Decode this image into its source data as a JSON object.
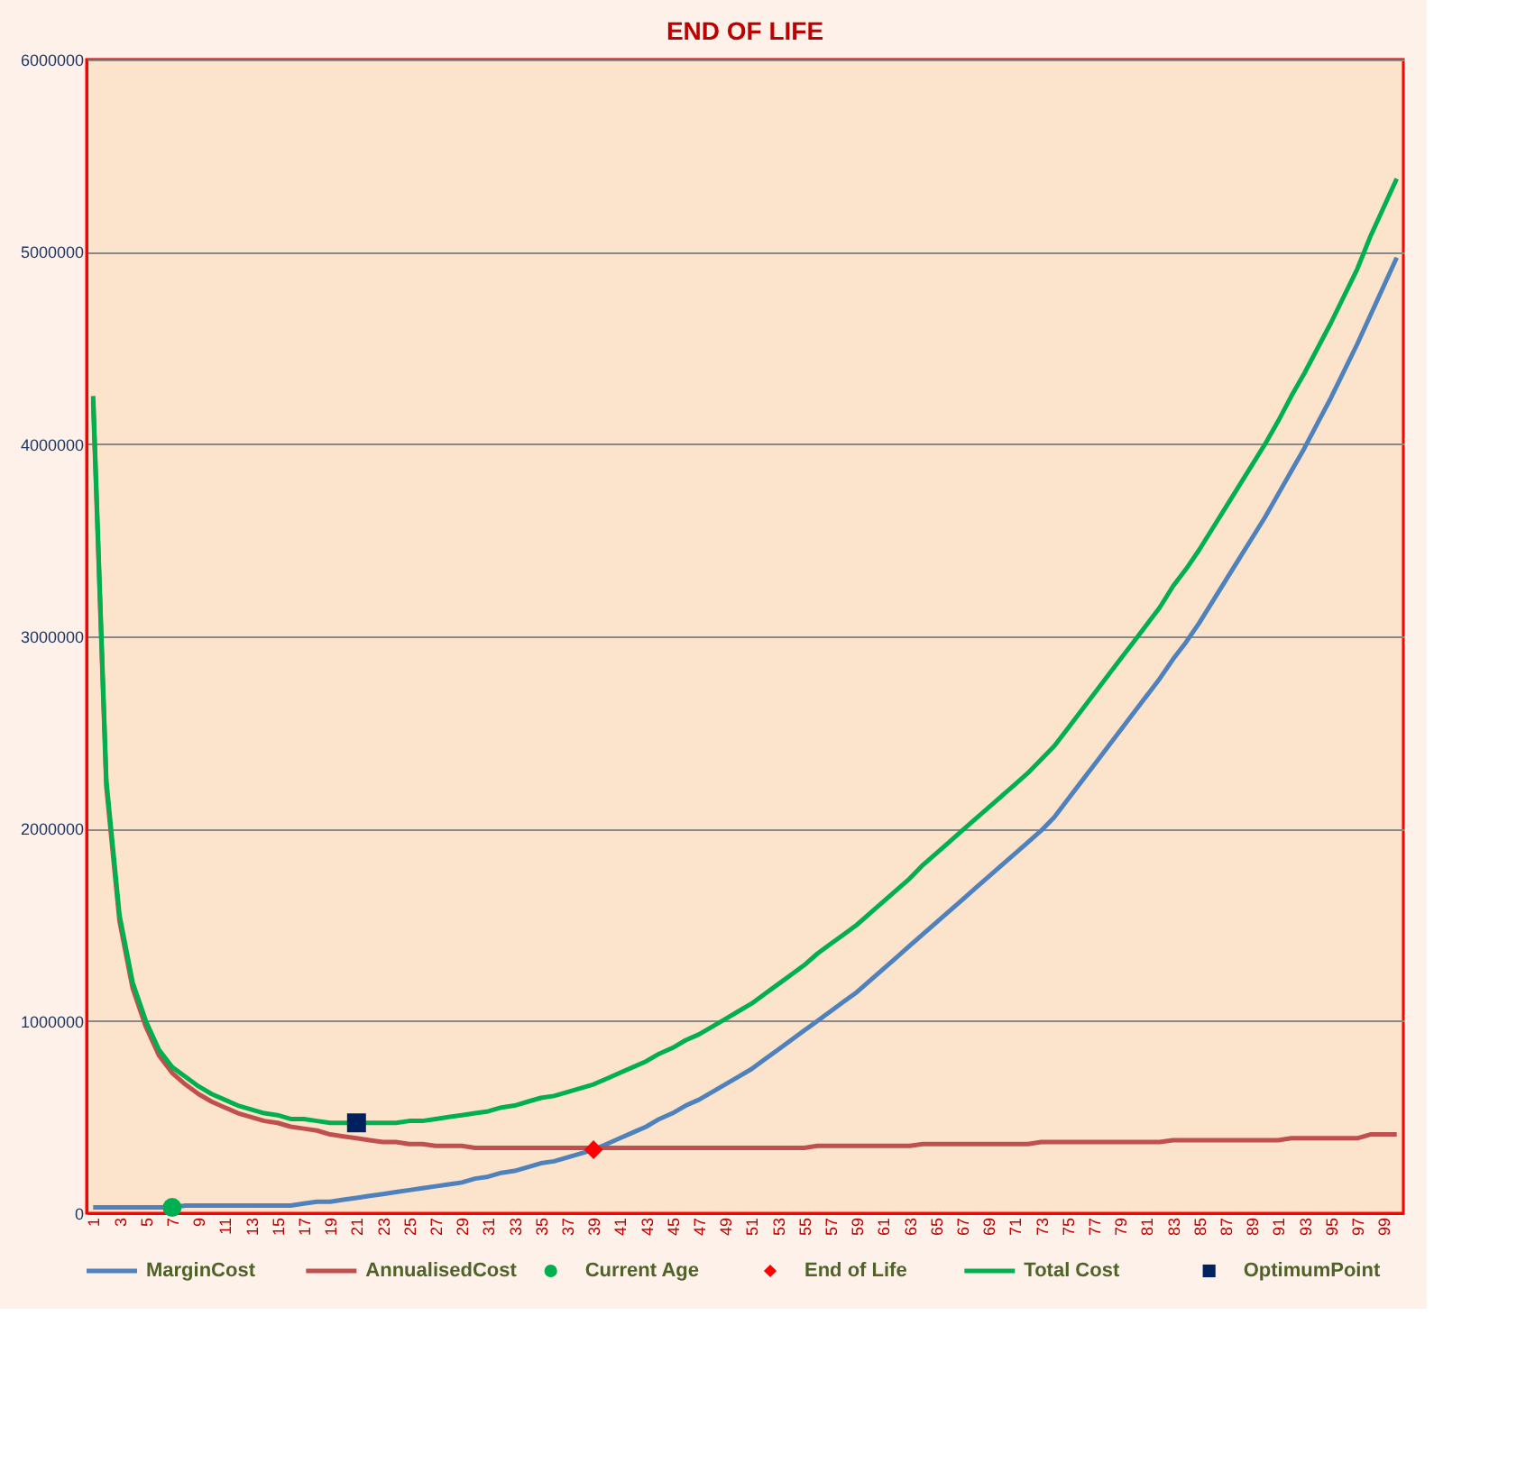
{
  "chart_data": {
    "type": "line",
    "title": "END OF LIFE",
    "categories": [
      "1",
      null,
      "3",
      null,
      "5",
      null,
      "7",
      null,
      "9",
      null,
      "11",
      null,
      "13",
      null,
      "15",
      null,
      "17",
      null,
      "19",
      null,
      "21",
      null,
      "23",
      null,
      "25",
      null,
      "27",
      null,
      "29",
      null,
      "31",
      null,
      "33",
      null,
      "35",
      null,
      "37",
      null,
      "39",
      null,
      "41",
      null,
      "43",
      null,
      "45",
      null,
      "47",
      null,
      "49",
      null,
      "51",
      null,
      "53",
      null,
      "55",
      null,
      "57",
      null,
      "59",
      null,
      "61",
      null,
      "63",
      null,
      "65",
      null,
      "67",
      null,
      "69",
      null,
      "71",
      null,
      "73",
      null,
      "75",
      null,
      "77",
      null,
      "79",
      null,
      "81",
      null,
      "83",
      null,
      "85",
      null,
      "87",
      null,
      "89",
      null,
      "91",
      null,
      "93",
      null,
      "95",
      null,
      "97",
      null,
      "99",
      null
    ],
    "series": [
      {
        "name": "MarginCost",
        "color": "#4f81bd",
        "values": [
          30000,
          30000,
          30000,
          30000,
          30000,
          30000,
          30000,
          40000,
          40000,
          40000,
          40000,
          40000,
          40000,
          40000,
          40000,
          40000,
          50000,
          60000,
          60000,
          70000,
          80000,
          90000,
          100000,
          110000,
          120000,
          130000,
          140000,
          150000,
          160000,
          180000,
          190000,
          210000,
          220000,
          240000,
          260000,
          270000,
          290000,
          310000,
          330000,
          360000,
          390000,
          420000,
          450000,
          490000,
          520000,
          560000,
          590000,
          630000,
          670000,
          710000,
          750000,
          800000,
          850000,
          900000,
          950000,
          1000000,
          1050000,
          1100000,
          1150000,
          1210000,
          1270000,
          1330000,
          1390000,
          1450000,
          1510000,
          1570000,
          1630000,
          1690000,
          1750000,
          1810000,
          1870000,
          1930000,
          1990000,
          2060000,
          2150000,
          2240000,
          2330000,
          2420000,
          2510000,
          2600000,
          2690000,
          2780000,
          2880000,
          2970000,
          3070000,
          3180000,
          3290000,
          3400000,
          3510000,
          3620000,
          3740000,
          3860000,
          3980000,
          4110000,
          4240000,
          4380000,
          4520000,
          4670000,
          4820000,
          4970000
        ]
      },
      {
        "name": "AnnualisedCost",
        "color": "#c0504d",
        "values": [
          4220000,
          2220000,
          1520000,
          1170000,
          970000,
          820000,
          730000,
          670000,
          620000,
          580000,
          550000,
          520000,
          500000,
          480000,
          470000,
          450000,
          440000,
          430000,
          410000,
          400000,
          390000,
          380000,
          370000,
          370000,
          360000,
          360000,
          350000,
          350000,
          350000,
          340000,
          340000,
          340000,
          340000,
          340000,
          340000,
          340000,
          340000,
          340000,
          340000,
          340000,
          340000,
          340000,
          340000,
          340000,
          340000,
          340000,
          340000,
          340000,
          340000,
          340000,
          340000,
          340000,
          340000,
          340000,
          340000,
          350000,
          350000,
          350000,
          350000,
          350000,
          350000,
          350000,
          350000,
          360000,
          360000,
          360000,
          360000,
          360000,
          360000,
          360000,
          360000,
          360000,
          370000,
          370000,
          370000,
          370000,
          370000,
          370000,
          370000,
          370000,
          370000,
          370000,
          380000,
          380000,
          380000,
          380000,
          380000,
          380000,
          380000,
          380000,
          380000,
          390000,
          390000,
          390000,
          390000,
          390000,
          390000,
          410000,
          410000,
          410000
        ]
      },
      {
        "name": "Current Age",
        "type": "scatter",
        "marker": "circle",
        "color": "#00b050",
        "x": [
          "7"
        ],
        "values": [
          30000
        ]
      },
      {
        "name": "End of Life",
        "type": "scatter",
        "marker": "diamond",
        "color": "#ff0000",
        "x": [
          "39"
        ],
        "values": [
          330000
        ]
      },
      {
        "name": "Total Cost",
        "color": "#00b050",
        "values": [
          4250000,
          2250000,
          1550000,
          1200000,
          1000000,
          850000,
          760000,
          710000,
          660000,
          620000,
          590000,
          560000,
          540000,
          520000,
          510000,
          490000,
          490000,
          480000,
          470000,
          470000,
          470000,
          470000,
          470000,
          470000,
          480000,
          480000,
          490000,
          500000,
          510000,
          520000,
          530000,
          550000,
          560000,
          580000,
          600000,
          610000,
          630000,
          650000,
          670000,
          700000,
          730000,
          760000,
          790000,
          830000,
          860000,
          900000,
          930000,
          970000,
          1010000,
          1050000,
          1090000,
          1140000,
          1190000,
          1240000,
          1290000,
          1350000,
          1400000,
          1450000,
          1500000,
          1560000,
          1620000,
          1680000,
          1740000,
          1810000,
          1870000,
          1930000,
          1990000,
          2050000,
          2110000,
          2170000,
          2230000,
          2290000,
          2360000,
          2430000,
          2520000,
          2610000,
          2700000,
          2790000,
          2880000,
          2970000,
          3060000,
          3150000,
          3260000,
          3350000,
          3450000,
          3560000,
          3670000,
          3780000,
          3890000,
          4000000,
          4120000,
          4250000,
          4370000,
          4500000,
          4630000,
          4770000,
          4910000,
          5080000,
          5230000,
          5380000
        ]
      },
      {
        "name": "OptimumPoint",
        "type": "scatter",
        "marker": "square",
        "color": "#002060",
        "x": [
          "21"
        ],
        "values": [
          470000
        ]
      }
    ],
    "ylim": [
      0,
      6000000
    ],
    "yticks": [
      0,
      1000000,
      2000000,
      3000000,
      4000000,
      5000000,
      6000000
    ],
    "grid": "y",
    "legend": "bottom",
    "line_style": "solid"
  }
}
